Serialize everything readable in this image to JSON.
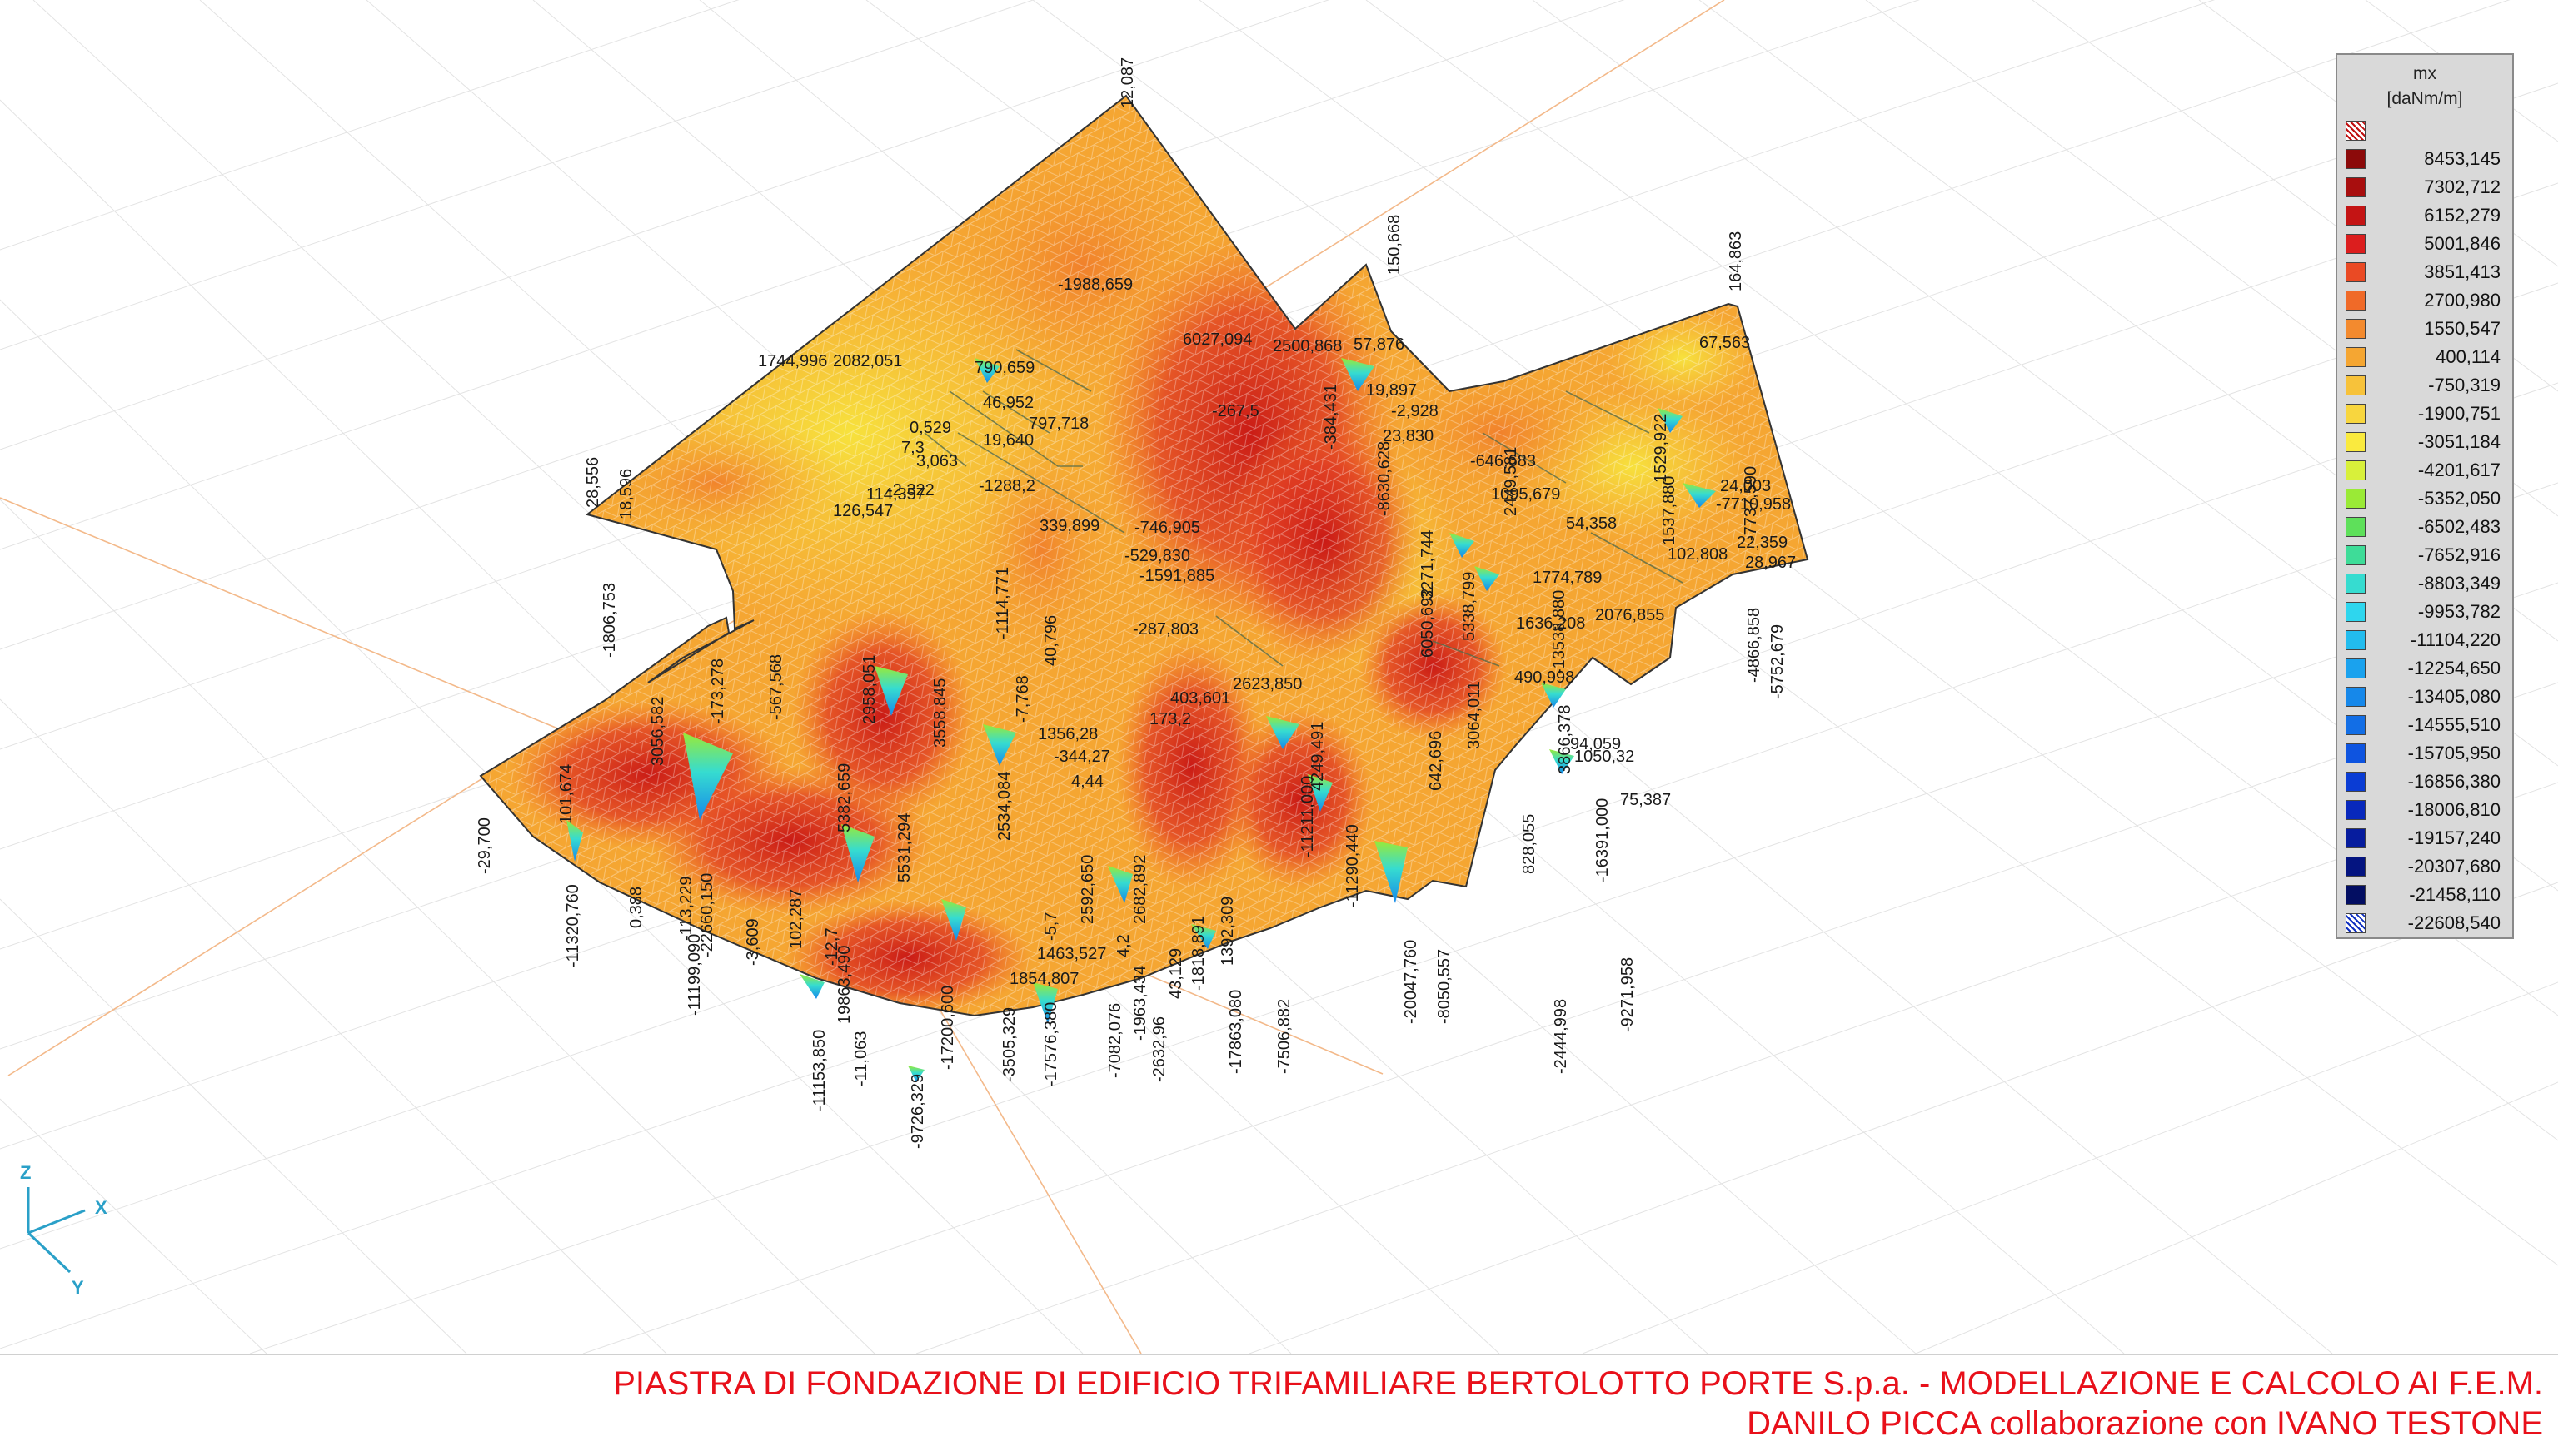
{
  "legend": {
    "quantity": "mx",
    "unit": "[daNm/m]",
    "levels": [
      {
        "value": "",
        "color": "#ffffff",
        "pattern": "over"
      },
      {
        "value": "8453,145",
        "color": "#8c0a0a"
      },
      {
        "value": "7302,712",
        "color": "#a80e0e"
      },
      {
        "value": "6152,279",
        "color": "#c41414"
      },
      {
        "value": "5001,846",
        "color": "#dc1e1e"
      },
      {
        "value": "3851,413",
        "color": "#ea4a24"
      },
      {
        "value": "2700,980",
        "color": "#f06a28"
      },
      {
        "value": "1550,547",
        "color": "#f38a2e"
      },
      {
        "value": "400,114",
        "color": "#f5a632"
      },
      {
        "value": "-750,319",
        "color": "#f7c23a"
      },
      {
        "value": "-1900,751",
        "color": "#f8d63e"
      },
      {
        "value": "-3051,184",
        "color": "#faea3e"
      },
      {
        "value": "-4201,617",
        "color": "#d8f03a"
      },
      {
        "value": "-5352,050",
        "color": "#9aea36"
      },
      {
        "value": "-6502,483",
        "color": "#5ee05a"
      },
      {
        "value": "-7652,916",
        "color": "#3edc98"
      },
      {
        "value": "-8803,349",
        "color": "#36dcd0"
      },
      {
        "value": "-9953,782",
        "color": "#2ed6ee"
      },
      {
        "value": "-11104,220",
        "color": "#22bcee"
      },
      {
        "value": "-12254,650",
        "color": "#1aa2ee"
      },
      {
        "value": "-13405,080",
        "color": "#1688ea"
      },
      {
        "value": "-14555,510",
        "color": "#126ee6"
      },
      {
        "value": "-15705,950",
        "color": "#0e54e0"
      },
      {
        "value": "-16856,380",
        "color": "#0a3cd4"
      },
      {
        "value": "-18006,810",
        "color": "#0828bc"
      },
      {
        "value": "-19157,240",
        "color": "#061c9e"
      },
      {
        "value": "-20307,680",
        "color": "#041480"
      },
      {
        "value": "-21458,110",
        "color": "#030e62"
      },
      {
        "value": "-22608,540",
        "color": "#ffffff",
        "pattern": "under"
      }
    ]
  },
  "axes": {
    "z": "Z",
    "x": "X",
    "y": "Y"
  },
  "caption": {
    "line1": "PIASTRA DI FONDAZIONE DI EDIFICIO TRIFAMILIARE BERTOLOTTO PORTE S.p.a. - MODELLAZIONE E CALCOLO AI F.E.M.",
    "line2": "DANILO PICCA collaborazione con IVANO TESTONE"
  },
  "value_labels": {
    "horizontal": [
      "1744,996",
      "2082,051",
      "46,952",
      "797,718",
      "790,659",
      "57,876",
      "19,897",
      "23,830",
      "-646,683",
      "1095,679",
      "67,563",
      "24,003",
      "-7710,958",
      "54,358",
      "22,359",
      "28,967",
      "102,808",
      "1774,789",
      "1636,208",
      "2076,855",
      "114,357",
      "339,899",
      "-746,905",
      "-529,830",
      "-1591,885",
      "-287,803",
      "403,601",
      "173,2",
      "2623,850",
      "4,44",
      "1356,28",
      "-344,27",
      "490,998",
      "94,059",
      "1050,32",
      "75,387",
      "1463,527",
      "1854,807",
      "126,547",
      "-2,928",
      "6027,094",
      "2500,868",
      "-1988,659",
      "-267,5",
      "3,063",
      "0,529",
      "7,3",
      "-2,322",
      "-1288,2",
      "19,640"
    ],
    "vertical": [
      "12,087",
      "150,668",
      "164,863",
      "28,556",
      "18,596",
      "-1806,753",
      "-29,700",
      "101,674",
      "3056,582",
      "-173,278",
      "-567,568",
      "2958,051",
      "3558,845",
      "-7,768",
      "40,796",
      "-1114,771",
      "-11320,760",
      "0,388",
      "-11199,090",
      "-22660,150",
      "-3,609",
      "102,287",
      "-11153,850",
      "-11,063",
      "19863,490",
      "-9726,329",
      "-17200,600",
      "-3505,329",
      "-17576,380",
      "-7082,076",
      "-1963,434",
      "-2632,96",
      "-17863,080",
      "-7506,882",
      "1392,309",
      "-20047,760",
      "-8050,557",
      "-2444,998",
      "-9271,958",
      "-13538,880",
      "-4866,858",
      "-5752,679",
      "-7737,590",
      "1529,922",
      "1537,880",
      "3271,744",
      "642,696",
      "3064,011",
      "5338,799",
      "3866,378",
      "2449,581",
      "-8630,628",
      "6050,692",
      "-384,431",
      "-11211,000",
      "4249,491",
      "-11290,440",
      "2534,084",
      "5531,294",
      "2682,892",
      "4,2",
      "43,129",
      "-1818,891",
      "2592,650",
      "828,055",
      "-16391,000",
      "-5,7",
      "-113,229",
      "-12,7",
      "5382,659"
    ]
  }
}
